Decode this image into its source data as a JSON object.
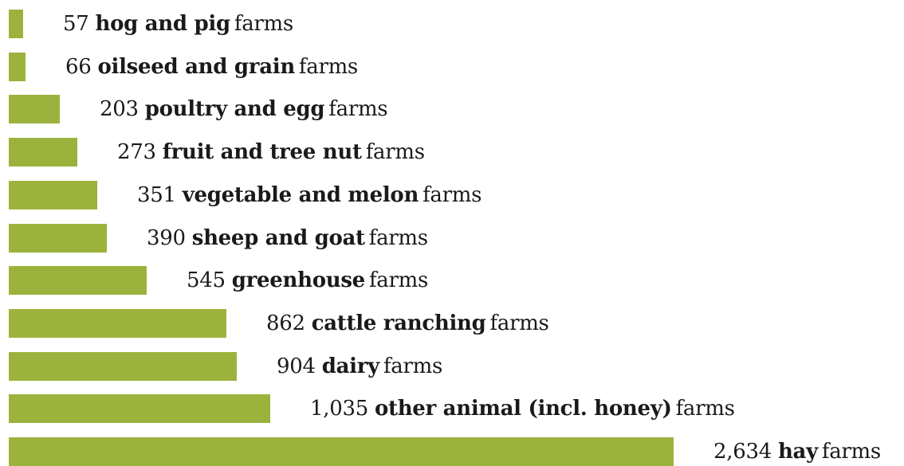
{
  "chart_data": {
    "type": "bar",
    "orientation": "horizontal",
    "bar_color": "#9bb33c",
    "suffix": "farms",
    "categories": [
      "hog and pig",
      "oilseed and grain",
      "poultry and egg",
      "fruit and tree nut",
      "vegetable and melon",
      "sheep and goat",
      "greenhouse",
      "cattle ranching",
      "dairy",
      "other animal (incl. honey)",
      "hay"
    ],
    "values": [
      57,
      66,
      203,
      273,
      351,
      390,
      545,
      862,
      904,
      1035,
      2634
    ],
    "value_labels": [
      "57",
      "66",
      "203",
      "273",
      "351",
      "390",
      "545",
      "862",
      "904",
      "1,035",
      "2,634"
    ],
    "title": "",
    "xlabel": "",
    "ylabel": ""
  }
}
